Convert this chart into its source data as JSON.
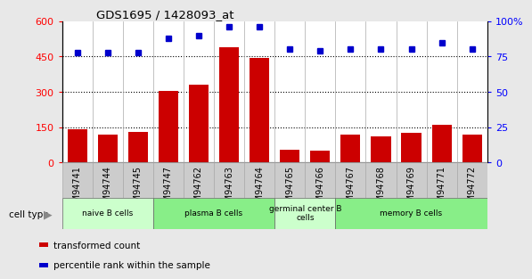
{
  "title": "GDS1695 / 1428093_at",
  "samples": [
    "GSM94741",
    "GSM94744",
    "GSM94745",
    "GSM94747",
    "GSM94762",
    "GSM94763",
    "GSM94764",
    "GSM94765",
    "GSM94766",
    "GSM94767",
    "GSM94768",
    "GSM94769",
    "GSM94771",
    "GSM94772"
  ],
  "bar_values": [
    140,
    120,
    132,
    305,
    330,
    490,
    445,
    55,
    50,
    120,
    112,
    125,
    160,
    120
  ],
  "dot_values": [
    78,
    78,
    78,
    88,
    90,
    96,
    96,
    80,
    79,
    80,
    80,
    80,
    85,
    80
  ],
  "cell_groups": [
    {
      "label": "naive B cells",
      "start": 0,
      "end": 3,
      "color": "#ccffcc"
    },
    {
      "label": "plasma B cells",
      "start": 3,
      "end": 7,
      "color": "#88ee88"
    },
    {
      "label": "germinal center B\ncells",
      "start": 7,
      "end": 9,
      "color": "#ccffcc"
    },
    {
      "label": "memory B cells",
      "start": 9,
      "end": 14,
      "color": "#88ee88"
    }
  ],
  "bar_color": "#cc0000",
  "dot_color": "#0000cc",
  "ylim_left": [
    0,
    600
  ],
  "ylim_right": [
    0,
    100
  ],
  "yticks_left": [
    0,
    150,
    300,
    450,
    600
  ],
  "yticks_right": [
    0,
    25,
    50,
    75,
    100
  ],
  "bg_color": "#e8e8e8",
  "xticklabel_bg": "#cccccc",
  "plot_bg": "#ffffff",
  "legend_bar_label": "transformed count",
  "legend_dot_label": "percentile rank within the sample",
  "cell_type_label": "cell type"
}
